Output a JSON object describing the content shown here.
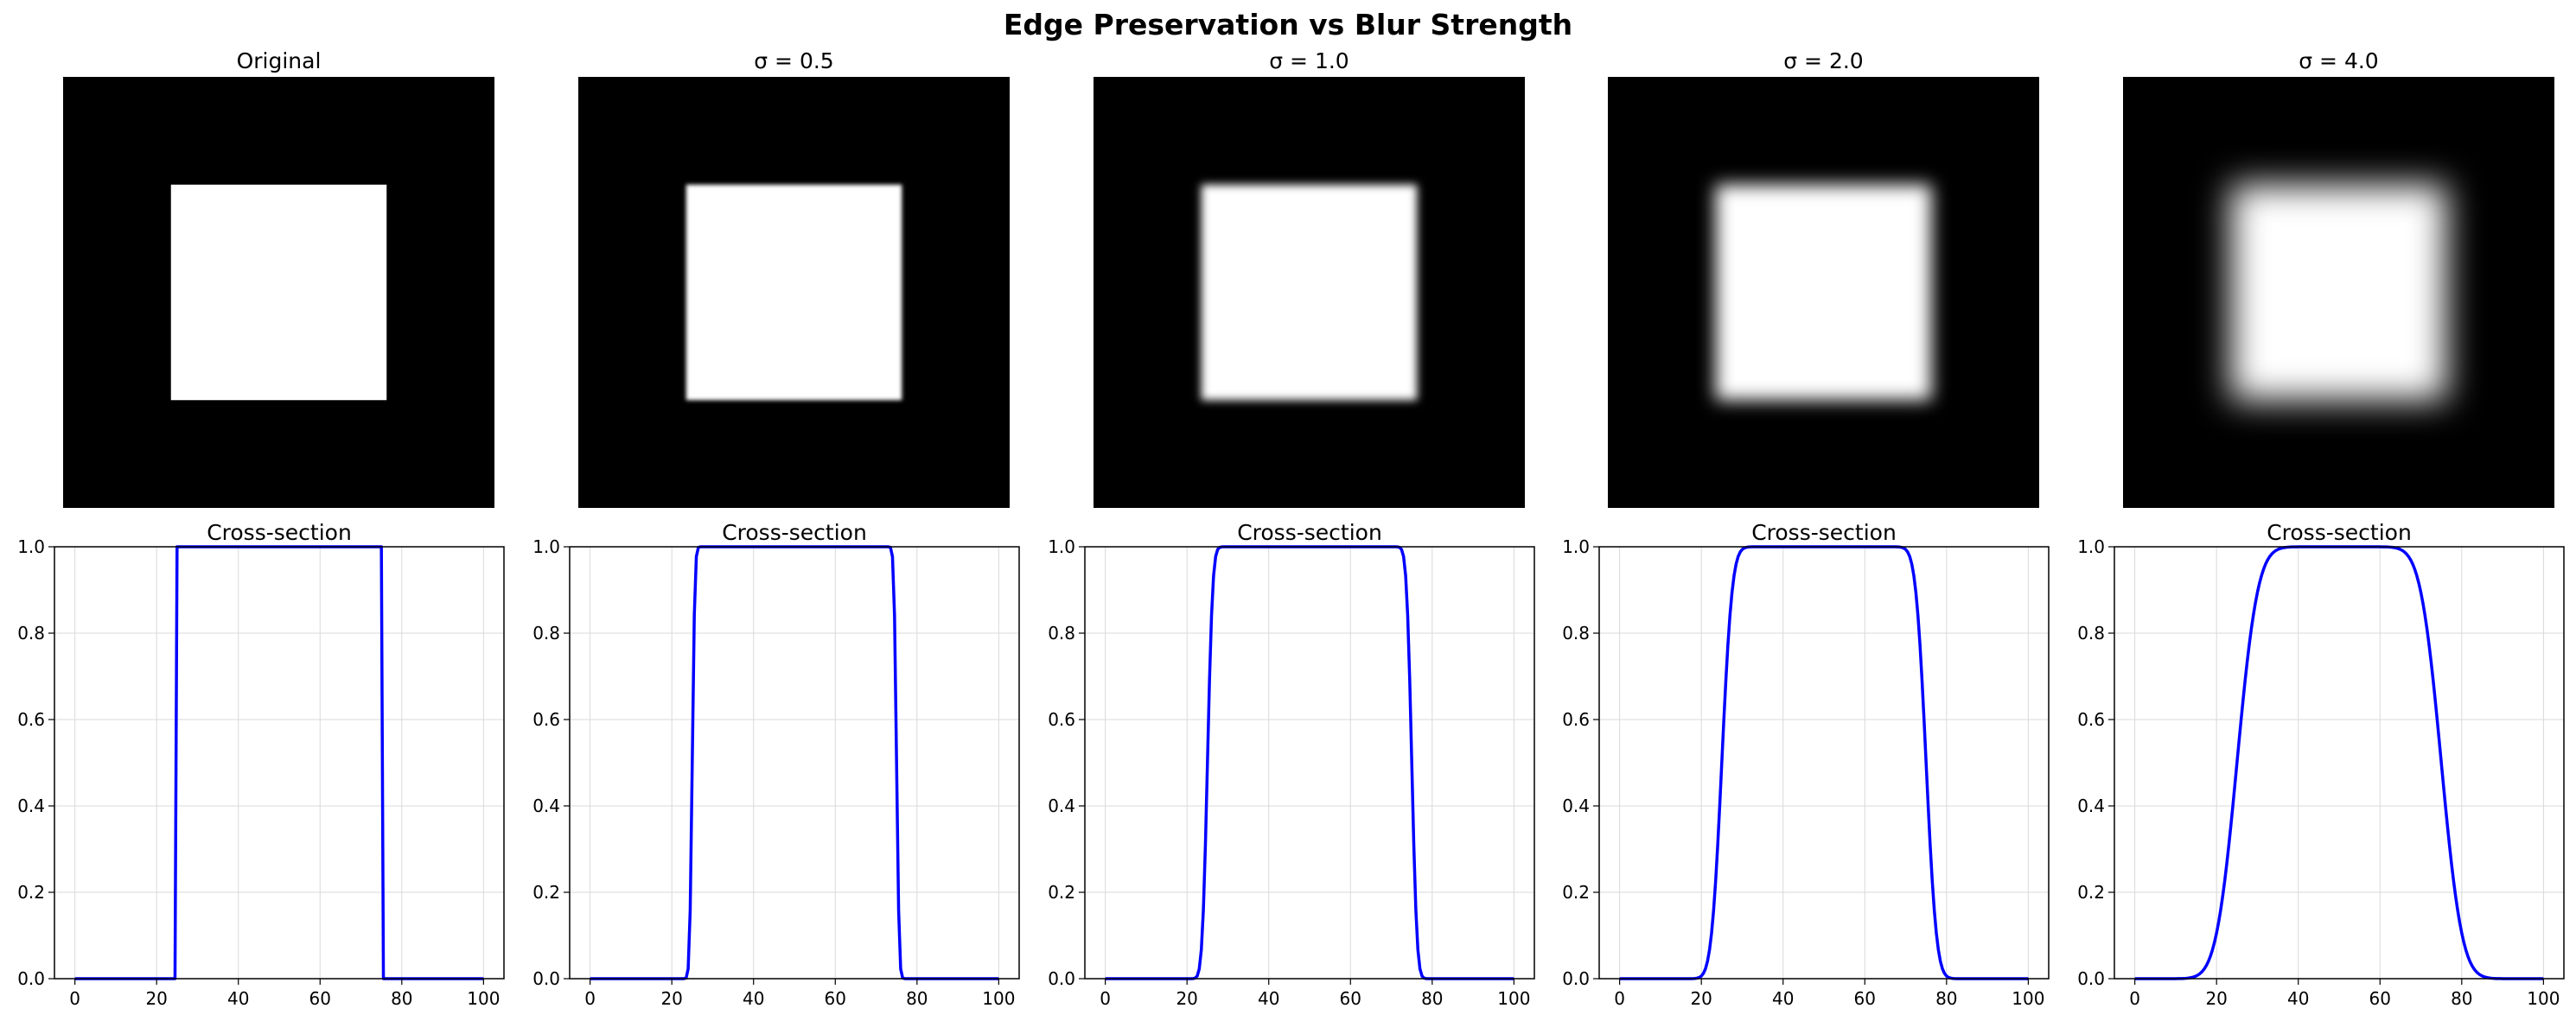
{
  "figure": {
    "title": "Edge Preservation vs Blur Strength"
  },
  "colors": {
    "line": "#0000ff",
    "grid": "#d9d9d9",
    "axes": "#000000",
    "background": "#ffffff"
  },
  "chart_data": [
    {
      "type": "heatmap",
      "title": "Original",
      "sigma": 0,
      "image": {
        "size": 100,
        "square_start": 25,
        "square_end": 75,
        "inside": 1.0,
        "outside": 0.0,
        "colormap": "gray"
      }
    },
    {
      "type": "heatmap",
      "title": "σ = 0.5",
      "sigma": 0.5,
      "image": {
        "size": 100,
        "square_start": 25,
        "square_end": 75,
        "inside": 1.0,
        "outside": 0.0,
        "colormap": "gray"
      }
    },
    {
      "type": "heatmap",
      "title": "σ = 1.0",
      "sigma": 1.0,
      "image": {
        "size": 100,
        "square_start": 25,
        "square_end": 75,
        "inside": 1.0,
        "outside": 0.0,
        "colormap": "gray"
      }
    },
    {
      "type": "heatmap",
      "title": "σ = 2.0",
      "sigma": 2.0,
      "image": {
        "size": 100,
        "square_start": 25,
        "square_end": 75,
        "inside": 1.0,
        "outside": 0.0,
        "colormap": "gray"
      }
    },
    {
      "type": "heatmap",
      "title": "σ = 4.0",
      "sigma": 4.0,
      "image": {
        "size": 100,
        "square_start": 25,
        "square_end": 75,
        "inside": 1.0,
        "outside": 0.0,
        "colormap": "gray"
      }
    },
    {
      "type": "line",
      "title": "Cross-section",
      "sigma": 0,
      "x_range": [
        0,
        100
      ],
      "step_edges": [
        25,
        75
      ],
      "xlim": [
        -5,
        105
      ],
      "ylim": [
        0,
        1
      ],
      "xticks": [
        0,
        20,
        40,
        60,
        80,
        100
      ],
      "yticks": [
        0.0,
        0.2,
        0.4,
        0.6,
        0.8,
        1.0
      ],
      "xtick_labels": [
        "0",
        "20",
        "40",
        "60",
        "80",
        "100"
      ],
      "ytick_labels": [
        "0.0",
        "0.2",
        "0.4",
        "0.6",
        "0.8",
        "1.0"
      ],
      "grid": true
    },
    {
      "type": "line",
      "title": "Cross-section",
      "sigma": 0.5,
      "x_range": [
        0,
        100
      ],
      "step_edges": [
        25,
        75
      ],
      "xlim": [
        -5,
        105
      ],
      "ylim": [
        0,
        1
      ],
      "xticks": [
        0,
        20,
        40,
        60,
        80,
        100
      ],
      "yticks": [
        0.0,
        0.2,
        0.4,
        0.6,
        0.8,
        1.0
      ],
      "xtick_labels": [
        "0",
        "20",
        "40",
        "60",
        "80",
        "100"
      ],
      "ytick_labels": [
        "0.0",
        "0.2",
        "0.4",
        "0.6",
        "0.8",
        "1.0"
      ],
      "grid": true
    },
    {
      "type": "line",
      "title": "Cross-section",
      "sigma": 1.0,
      "x_range": [
        0,
        100
      ],
      "step_edges": [
        25,
        75
      ],
      "xlim": [
        -5,
        105
      ],
      "ylim": [
        0,
        1
      ],
      "xticks": [
        0,
        20,
        40,
        60,
        80,
        100
      ],
      "yticks": [
        0.0,
        0.2,
        0.4,
        0.6,
        0.8,
        1.0
      ],
      "xtick_labels": [
        "0",
        "20",
        "40",
        "60",
        "80",
        "100"
      ],
      "ytick_labels": [
        "0.0",
        "0.2",
        "0.4",
        "0.6",
        "0.8",
        "1.0"
      ],
      "grid": true
    },
    {
      "type": "line",
      "title": "Cross-section",
      "sigma": 2.0,
      "x_range": [
        0,
        100
      ],
      "step_edges": [
        25,
        75
      ],
      "xlim": [
        -5,
        105
      ],
      "ylim": [
        0,
        1
      ],
      "xticks": [
        0,
        20,
        40,
        60,
        80,
        100
      ],
      "yticks": [
        0.0,
        0.2,
        0.4,
        0.6,
        0.8,
        1.0
      ],
      "xtick_labels": [
        "0",
        "20",
        "40",
        "60",
        "80",
        "100"
      ],
      "ytick_labels": [
        "0.0",
        "0.2",
        "0.4",
        "0.6",
        "0.8",
        "1.0"
      ],
      "grid": true
    },
    {
      "type": "line",
      "title": "Cross-section",
      "sigma": 4.0,
      "x_range": [
        0,
        100
      ],
      "step_edges": [
        25,
        75
      ],
      "xlim": [
        -5,
        105
      ],
      "ylim": [
        0,
        1
      ],
      "xticks": [
        0,
        20,
        40,
        60,
        80,
        100
      ],
      "yticks": [
        0.0,
        0.2,
        0.4,
        0.6,
        0.8,
        1.0
      ],
      "xtick_labels": [
        "0",
        "20",
        "40",
        "60",
        "80",
        "100"
      ],
      "ytick_labels": [
        "0.0",
        "0.2",
        "0.4",
        "0.6",
        "0.8",
        "1.0"
      ],
      "grid": true
    }
  ]
}
